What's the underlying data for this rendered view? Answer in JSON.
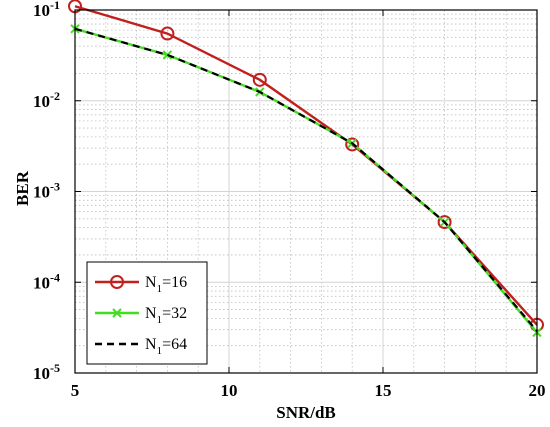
{
  "chart_data": {
    "type": "line",
    "title": "",
    "xlabel": "SNR/dB",
    "ylabel": "BER",
    "x": [
      5,
      8,
      11,
      14,
      17,
      20
    ],
    "xlim": [
      5,
      20
    ],
    "xticks": [
      "5",
      "10",
      "15",
      "20"
    ],
    "ylim": [
      1e-05,
      0.1
    ],
    "yscale": "log",
    "yticks": [
      {
        "base": "10",
        "exp": "-1"
      },
      {
        "base": "10",
        "exp": "-2"
      },
      {
        "base": "10",
        "exp": "-3"
      },
      {
        "base": "10",
        "exp": "-4"
      },
      {
        "base": "10",
        "exp": "-5"
      }
    ],
    "grid": true,
    "legend_position": "bottom-left",
    "series": [
      {
        "name_main": "N",
        "name_sub": "1",
        "name_rest": "=16",
        "values": [
          0.11,
          0.055,
          0.017,
          0.0033,
          0.00046,
          3.4e-05
        ],
        "color": "#c0201e",
        "marker": "circle",
        "dash": "solid"
      },
      {
        "name_main": "N",
        "name_sub": "1",
        "name_rest": "=32",
        "values": [
          0.062,
          0.032,
          0.0125,
          0.0034,
          0.00046,
          2.8e-05
        ],
        "color": "#44dd22",
        "marker": "x",
        "dash": "solid"
      },
      {
        "name_main": "N",
        "name_sub": "1",
        "name_rest": "=64",
        "values": [
          0.062,
          0.032,
          0.0125,
          0.0034,
          0.00046,
          2.9e-05
        ],
        "color": "#000000",
        "marker": "none",
        "dash": "dashed"
      }
    ]
  }
}
